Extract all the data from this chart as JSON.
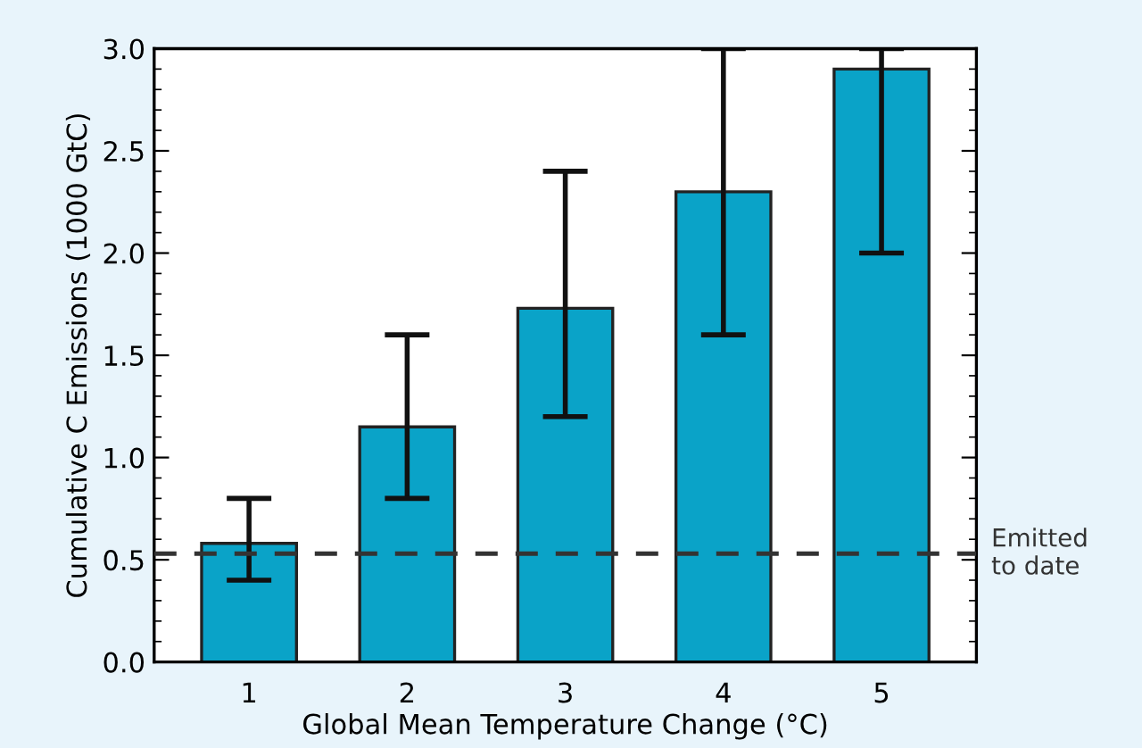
{
  "chart_data": {
    "type": "bar",
    "xlabel": "Global Mean Temperature Change (°C)",
    "ylabel": "Cumulative C Emissions (1000 GtC)",
    "categories": [
      "1",
      "2",
      "3",
      "4",
      "5"
    ],
    "values": [
      0.58,
      1.15,
      1.73,
      2.3,
      2.9
    ],
    "errors": [
      [
        0.4,
        0.8
      ],
      [
        0.8,
        1.6
      ],
      [
        1.2,
        2.4
      ],
      [
        1.6,
        3.0
      ],
      [
        2.0,
        3.0
      ]
    ],
    "color": "#0aa3c8",
    "ylim": [
      0,
      3.0
    ],
    "yticks": [
      {
        "value": 0,
        "label": "0.0"
      },
      0.5,
      {
        "value": 1,
        "label": "1.0"
      },
      1.5,
      {
        "value": 2,
        "label": "2.0"
      },
      2.5,
      {
        "value": 3,
        "label": "3.0"
      }
    ],
    "ref_lines": [
      {
        "axis": "y",
        "value": 0.53,
        "label": "Emitted\nto date",
        "color": "#333333",
        "line_style": "dashed"
      }
    ],
    "grid": false,
    "legend": false
  }
}
